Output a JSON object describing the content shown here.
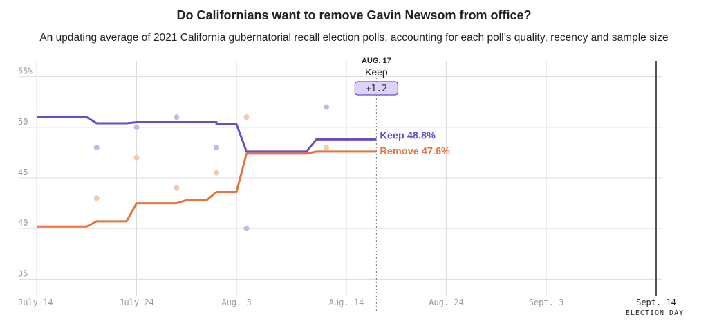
{
  "title": "Do Californians want to remove Gavin Newsom from office?",
  "subtitle": "An updating average of 2021 California gubernatorial recall election polls, accounting for each poll’s quality, recency and sample size",
  "colors": {
    "keep": "#6a4bc8",
    "remove": "#e6733f",
    "keep_dot": "#c3b8ee",
    "remove_dot": "#f6c7ae",
    "grid": "#dcdcdc",
    "tick": "#999999",
    "badge_fill": "#dcd3fa"
  },
  "annotation": {
    "date": "AUG. 17",
    "leader": "Keep",
    "margin": "+1.2"
  },
  "end_labels": {
    "keep": "Keep 48.8%",
    "remove": "Remove 47.6%"
  },
  "election_day_label": "ELECTION DAY",
  "chart_data": {
    "type": "line",
    "title": "Do Californians want to remove Gavin Newsom from office?",
    "subtitle": "An updating average of 2021 California gubernatorial recall election polls, accounting for each poll’s quality, recency and sample size",
    "x_range": [
      "2021-07-14",
      "2021-09-14"
    ],
    "ylim": [
      34,
      56
    ],
    "x_ticks": [
      {
        "date": "2021-07-14",
        "label": "July 14"
      },
      {
        "date": "2021-07-24",
        "label": "July 24"
      },
      {
        "date": "2021-08-03",
        "label": "Aug. 3"
      },
      {
        "date": "2021-08-14",
        "label": "Aug. 14"
      },
      {
        "date": "2021-08-24",
        "label": "Aug. 24"
      },
      {
        "date": "2021-09-03",
        "label": "Sept. 3"
      },
      {
        "date": "2021-09-14",
        "label": "Sept. 14"
      }
    ],
    "y_ticks": [
      {
        "value": 35,
        "label": "35"
      },
      {
        "value": 40,
        "label": "40"
      },
      {
        "value": 45,
        "label": "45"
      },
      {
        "value": 50,
        "label": "50"
      },
      {
        "value": 55,
        "label": "55%"
      }
    ],
    "grid": true,
    "series": [
      {
        "name": "Keep",
        "points": [
          [
            "2021-07-14",
            51.0
          ],
          [
            "2021-07-19",
            51.0
          ],
          [
            "2021-07-20",
            50.4
          ],
          [
            "2021-07-23",
            50.4
          ],
          [
            "2021-07-24",
            50.5
          ],
          [
            "2021-07-29",
            50.5
          ],
          [
            "2021-08-01",
            50.5
          ],
          [
            "2021-08-01",
            50.3
          ],
          [
            "2021-08-03",
            50.3
          ],
          [
            "2021-08-04",
            47.6
          ],
          [
            "2021-08-10",
            47.6
          ],
          [
            "2021-08-11",
            48.8
          ],
          [
            "2021-08-17",
            48.8
          ]
        ]
      },
      {
        "name": "Remove",
        "points": [
          [
            "2021-07-14",
            40.2
          ],
          [
            "2021-07-19",
            40.2
          ],
          [
            "2021-07-20",
            40.7
          ],
          [
            "2021-07-23",
            40.7
          ],
          [
            "2021-07-24",
            42.5
          ],
          [
            "2021-07-28",
            42.5
          ],
          [
            "2021-07-29",
            42.8
          ],
          [
            "2021-07-31",
            42.8
          ],
          [
            "2021-08-01",
            43.6
          ],
          [
            "2021-08-03",
            43.6
          ],
          [
            "2021-08-04",
            47.4
          ],
          [
            "2021-08-10",
            47.4
          ],
          [
            "2021-08-11",
            47.6
          ],
          [
            "2021-08-17",
            47.6
          ]
        ]
      }
    ],
    "polls": [
      {
        "date": "2021-07-20",
        "keep": 48,
        "remove": 43
      },
      {
        "date": "2021-07-24",
        "keep": 50,
        "remove": 47
      },
      {
        "date": "2021-07-28",
        "keep": 51,
        "remove": 44
      },
      {
        "date": "2021-08-01",
        "keep": 48,
        "remove": 45.5
      },
      {
        "date": "2021-08-04",
        "keep": 40,
        "remove": 51
      },
      {
        "date": "2021-08-12",
        "keep": 52,
        "remove": 48
      }
    ],
    "latest": {
      "date": "2021-08-17",
      "keep": 48.8,
      "remove": 47.6,
      "leader": "Keep",
      "margin": 1.2
    }
  }
}
